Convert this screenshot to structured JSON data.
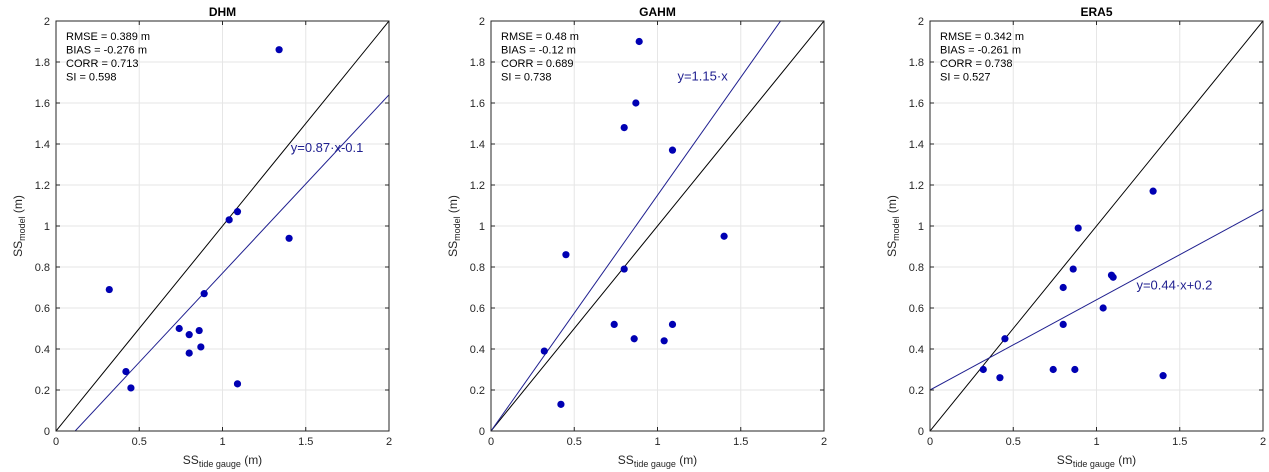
{
  "colors": {
    "points": "#0000b3",
    "fit_line": "#1f1f8f",
    "identity_line": "#000000",
    "grid": "#e6e6e6",
    "axis": "#262626"
  },
  "chart_data": [
    {
      "type": "scatter",
      "title": "DHM",
      "xlabel": {
        "base": "SS",
        "sub": "tide gauge",
        "unit": " (m)"
      },
      "ylabel": {
        "base": "SS",
        "sub": "model",
        "unit": " (m)"
      },
      "xlim": [
        0,
        2
      ],
      "ylim": [
        0,
        2
      ],
      "xticks": [
        0,
        0.5,
        1,
        1.5,
        2
      ],
      "xtick_labels": [
        "0",
        "0.5",
        "1",
        "1.5",
        "2"
      ],
      "yticks": [
        0,
        0.2,
        0.4,
        0.6,
        0.8,
        1,
        1.2,
        1.4,
        1.6,
        1.8,
        2
      ],
      "ytick_labels": [
        "0",
        "0.2",
        "0.4",
        "0.6",
        "0.8",
        "1",
        "1.2",
        "1.4",
        "1.6",
        "1.8",
        "2"
      ],
      "grid": true,
      "stats": [
        "RMSE = 0.389 m",
        "BIAS = -0.276 m",
        "CORR = 0.713",
        "SI = 0.598"
      ],
      "fit": {
        "slope": 0.87,
        "intercept": -0.1,
        "label": "y=0.87·x-0.1",
        "label_at": [
          1.41,
          1.36
        ]
      },
      "points": [
        [
          0.32,
          0.69
        ],
        [
          0.42,
          0.29
        ],
        [
          0.45,
          0.21
        ],
        [
          0.74,
          0.5
        ],
        [
          0.8,
          0.47
        ],
        [
          0.8,
          0.38
        ],
        [
          0.86,
          0.49
        ],
        [
          0.87,
          0.41
        ],
        [
          0.89,
          0.67
        ],
        [
          1.04,
          1.03
        ],
        [
          1.09,
          1.07
        ],
        [
          1.09,
          0.23
        ],
        [
          1.34,
          1.86
        ],
        [
          1.4,
          0.94
        ]
      ]
    },
    {
      "type": "scatter",
      "title": "GAHM",
      "xlabel": {
        "base": "SS",
        "sub": "tide gauge",
        "unit": " (m)"
      },
      "ylabel": {
        "base": "SS",
        "sub": "model",
        "unit": " (m)"
      },
      "xlim": [
        0,
        2
      ],
      "ylim": [
        0,
        2
      ],
      "xticks": [
        0,
        0.5,
        1,
        1.5,
        2
      ],
      "xtick_labels": [
        "0",
        "0.5",
        "1",
        "1.5",
        "2"
      ],
      "yticks": [
        0,
        0.2,
        0.4,
        0.6,
        0.8,
        1,
        1.2,
        1.4,
        1.6,
        1.8,
        2
      ],
      "ytick_labels": [
        "0",
        "0.2",
        "0.4",
        "0.6",
        "0.8",
        "1",
        "1.2",
        "1.4",
        "1.6",
        "1.8",
        "2"
      ],
      "grid": true,
      "stats": [
        "RMSE = 0.48 m",
        "BIAS = -0.12 m",
        "CORR = 0.689",
        "SI = 0.738"
      ],
      "fit": {
        "slope": 1.15,
        "intercept": 0,
        "label": "y=1.15·x",
        "label_at": [
          1.12,
          1.71
        ]
      },
      "points": [
        [
          0.32,
          0.39
        ],
        [
          0.42,
          0.13
        ],
        [
          0.45,
          0.86
        ],
        [
          0.74,
          0.52
        ],
        [
          0.8,
          1.48
        ],
        [
          0.8,
          0.79
        ],
        [
          0.86,
          0.45
        ],
        [
          0.87,
          1.6
        ],
        [
          0.89,
          1.9
        ],
        [
          1.04,
          0.44
        ],
        [
          1.09,
          0.52
        ],
        [
          1.09,
          1.37
        ],
        [
          1.4,
          0.95
        ]
      ]
    },
    {
      "type": "scatter",
      "title": "ERA5",
      "xlabel": {
        "base": "SS",
        "sub": "tide gauge",
        "unit": " (m)"
      },
      "ylabel": {
        "base": "SS",
        "sub": "model",
        "unit": " (m)"
      },
      "xlim": [
        0,
        2
      ],
      "ylim": [
        0,
        2
      ],
      "xticks": [
        0,
        0.5,
        1,
        1.5,
        2
      ],
      "xtick_labels": [
        "0",
        "0.5",
        "1",
        "1.5",
        "2"
      ],
      "yticks": [
        0,
        0.2,
        0.4,
        0.6,
        0.8,
        1,
        1.2,
        1.4,
        1.6,
        1.8,
        2
      ],
      "ytick_labels": [
        "0",
        "0.2",
        "0.4",
        "0.6",
        "0.8",
        "1",
        "1.2",
        "1.4",
        "1.6",
        "1.8",
        "2"
      ],
      "grid": true,
      "stats": [
        "RMSE = 0.342 m",
        "BIAS = -0.261 m",
        "CORR = 0.738",
        "SI = 0.527"
      ],
      "fit": {
        "slope": 0.44,
        "intercept": 0.2,
        "label": "y=0.44·x+0.2",
        "label_at": [
          1.24,
          0.69
        ]
      },
      "points": [
        [
          0.32,
          0.3
        ],
        [
          0.42,
          0.26
        ],
        [
          0.45,
          0.45
        ],
        [
          0.74,
          0.3
        ],
        [
          0.8,
          0.7
        ],
        [
          0.8,
          0.52
        ],
        [
          0.86,
          0.79
        ],
        [
          0.87,
          0.3
        ],
        [
          0.89,
          0.99
        ],
        [
          1.04,
          0.6
        ],
        [
          1.09,
          0.76
        ],
        [
          1.1,
          0.75
        ],
        [
          1.34,
          1.17
        ],
        [
          1.4,
          0.27
        ]
      ]
    }
  ]
}
